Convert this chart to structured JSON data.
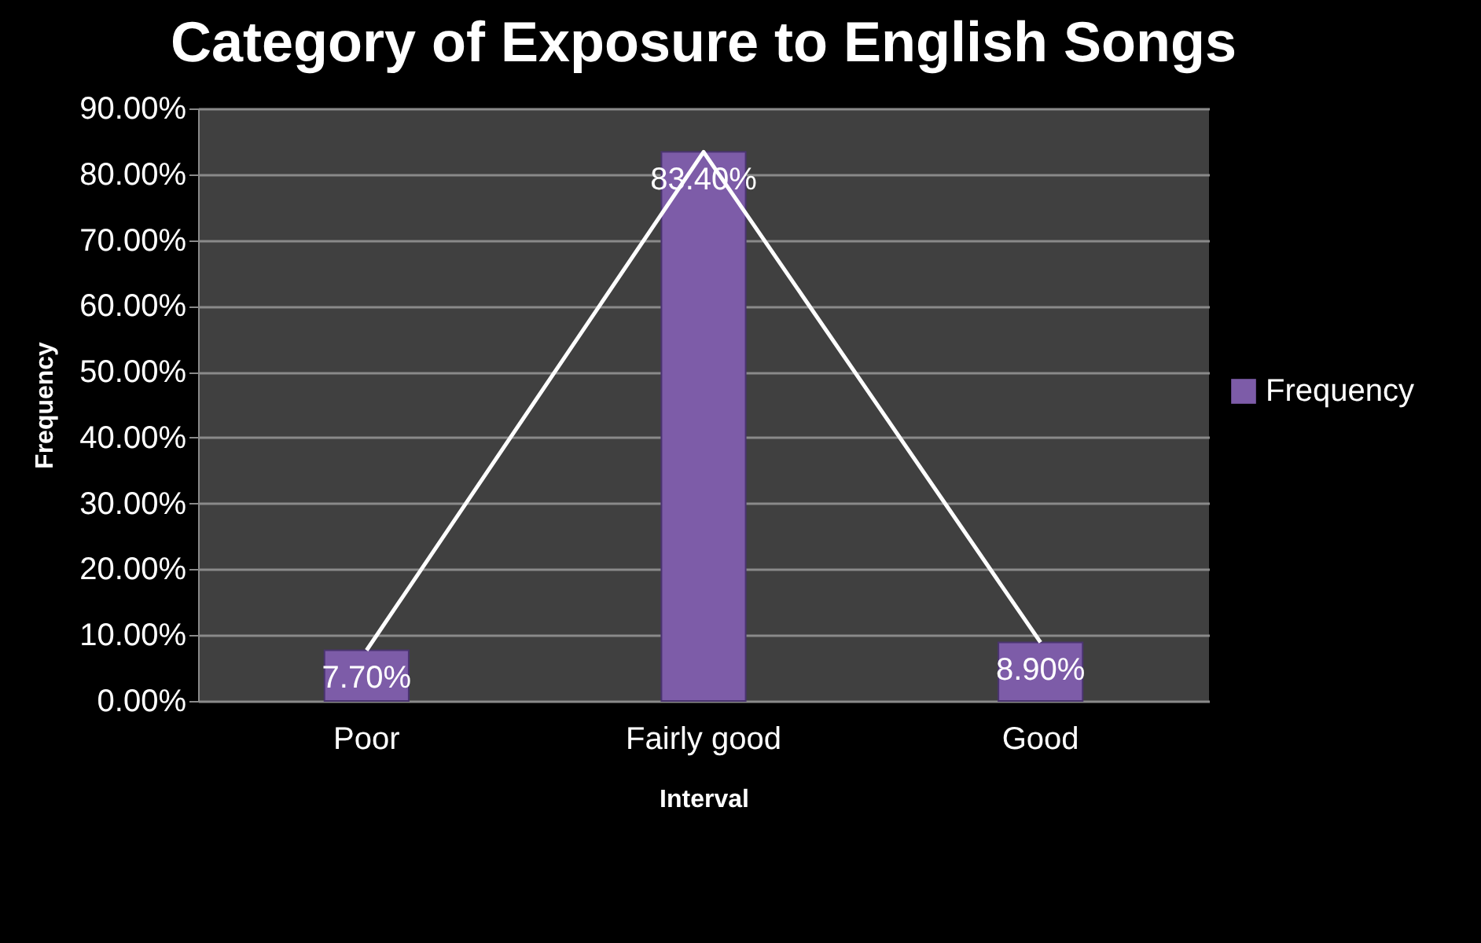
{
  "chart_data": {
    "type": "bar",
    "title": "Category of Exposure to English Songs",
    "xlabel": "Interval",
    "ylabel": "Frequency",
    "categories": [
      "Poor",
      "Fairly good",
      "Good"
    ],
    "series": [
      {
        "name": "Frequency",
        "color": "#7d5ca8",
        "values": [
          7.7,
          83.4,
          8.9
        ],
        "value_labels": [
          "7.70%",
          "83.40%",
          "8.90%"
        ]
      },
      {
        "type": "line",
        "color": "#ffffff",
        "values": [
          7.7,
          83.4,
          8.9
        ]
      }
    ],
    "ylim": [
      0,
      90
    ],
    "yticks": [
      {
        "value": 0,
        "label": "0.00%"
      },
      {
        "value": 10,
        "label": "10.00%"
      },
      {
        "value": 20,
        "label": "20.00%"
      },
      {
        "value": 30,
        "label": "30.00%"
      },
      {
        "value": 40,
        "label": "40.00%"
      },
      {
        "value": 50,
        "label": "50.00%"
      },
      {
        "value": 60,
        "label": "60.00%"
      },
      {
        "value": 70,
        "label": "70.00%"
      },
      {
        "value": 80,
        "label": "80.00%"
      },
      {
        "value": 90,
        "label": "90.00%"
      }
    ],
    "grid": "y",
    "legend": "right"
  }
}
